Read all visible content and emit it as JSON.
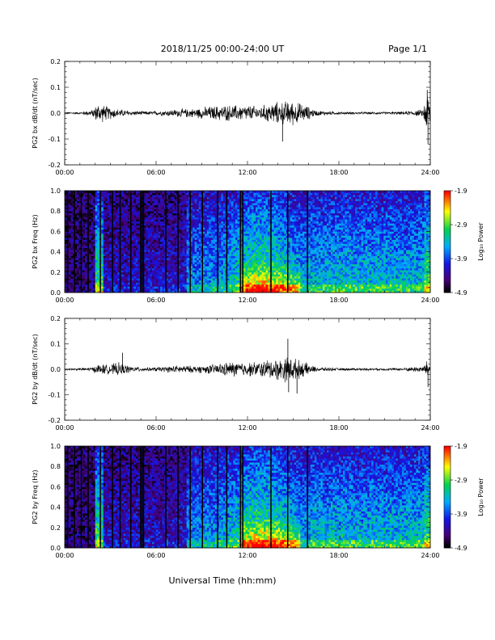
{
  "header": {
    "title": "2018/11/25  00:00-24:00 UT",
    "page": "Page 1/1"
  },
  "footer": {
    "xlabel": "Universal Time (hh:mm)"
  },
  "colors": {
    "trace": "#000000",
    "frame": "#000000",
    "gap_band": "#000000",
    "colorbar": [
      "#000000",
      "#5a0080",
      "#1a1aff",
      "#00c8ff",
      "#00d050",
      "#ffff00",
      "#ff0000"
    ]
  },
  "chart_data": [
    {
      "id": "bx-dbdt",
      "type": "line",
      "ylabel": "PG2 bx dB/dt (nT/sec)",
      "xlim": [
        0,
        24
      ],
      "ylim": [
        -0.2,
        0.2
      ],
      "x_ticks": [
        "00:00",
        "06:00",
        "12:00",
        "18:00",
        "24:00"
      ],
      "y_ticks": [
        "-0.2",
        "-0.1",
        "0.0",
        "0.1",
        "0.2"
      ],
      "y_tick_values": [
        -0.2,
        -0.1,
        0.0,
        0.1,
        0.2
      ],
      "x_tick_values": [
        0,
        6,
        12,
        18,
        24
      ],
      "envelope": {
        "hours": [
          0,
          1,
          1.8,
          2.2,
          2.8,
          3.5,
          4.5,
          5.5,
          6.5,
          7.5,
          8.5,
          9.5,
          10.5,
          11.3,
          12,
          12.8,
          13.5,
          14.2,
          14.7,
          15.2,
          15.8,
          16.5,
          18,
          20,
          22,
          23.5,
          23.8,
          24
        ],
        "amplitude": [
          0.004,
          0.005,
          0.015,
          0.045,
          0.03,
          0.018,
          0.01,
          0.008,
          0.012,
          0.018,
          0.02,
          0.03,
          0.035,
          0.035,
          0.035,
          0.03,
          0.045,
          0.05,
          0.055,
          0.05,
          0.035,
          0.012,
          0.006,
          0.005,
          0.006,
          0.015,
          0.1,
          0.06
        ]
      },
      "spikes": [
        {
          "hour": 14.3,
          "value": -0.11
        },
        {
          "hour": 23.85,
          "value": -0.12
        },
        {
          "hour": 23.8,
          "value": 0.09
        }
      ]
    },
    {
      "id": "bx-freq",
      "type": "heatmap",
      "ylabel": "PG2 bx Freq (Hz)",
      "colorbar_label": "Log₁₀ Power",
      "xlim": [
        0,
        24
      ],
      "ylim": [
        0,
        1.0
      ],
      "x_ticks": [
        "00:00",
        "06:00",
        "12:00",
        "18:00",
        "24:00"
      ],
      "y_ticks": [
        "0.0",
        "0.2",
        "0.4",
        "0.6",
        "0.8",
        "1.0"
      ],
      "y_tick_values": [
        0,
        0.2,
        0.4,
        0.6,
        0.8,
        1.0
      ],
      "x_tick_values": [
        0,
        6,
        12,
        18,
        24
      ],
      "colorbar_ticks": [
        "-1.9",
        "-2.9",
        "-3.9",
        "-4.9"
      ],
      "colorbar_tick_values": [
        -1.9,
        -2.9,
        -3.9,
        -4.9
      ],
      "clim": [
        -4.9,
        -1.9
      ],
      "gaps_hours": [
        0.15,
        0.6,
        1.05,
        1.5,
        2.3,
        3.1,
        3.6,
        4.3,
        4.95,
        5.1,
        6.6,
        7.4,
        8.2,
        9.0,
        10.0,
        10.6,
        11.5,
        11.65,
        13.5,
        14.6,
        15.9
      ],
      "gap_widths_hours": [
        0.08,
        0.08,
        0.08,
        0.08,
        0.08,
        0.08,
        0.08,
        0.08,
        0.12,
        0.12,
        0.08,
        0.08,
        0.08,
        0.08,
        0.08,
        0.08,
        0.08,
        0.08,
        0.08,
        0.08,
        0.08
      ]
    },
    {
      "id": "by-dbdt",
      "type": "line",
      "ylabel": "PG2 by dB/dt (nT/sec)",
      "xlim": [
        0,
        24
      ],
      "ylim": [
        -0.2,
        0.2
      ],
      "x_ticks": [
        "00:00",
        "06:00",
        "12:00",
        "18:00",
        "24:00"
      ],
      "y_ticks": [
        "-0.2",
        "-0.1",
        "0.0",
        "0.1",
        "0.2"
      ],
      "y_tick_values": [
        -0.2,
        -0.1,
        0.0,
        0.1,
        0.2
      ],
      "x_tick_values": [
        0,
        6,
        12,
        18,
        24
      ],
      "envelope": {
        "hours": [
          0,
          1,
          1.8,
          2.3,
          2.8,
          3.5,
          4.5,
          5.5,
          6.5,
          7.5,
          8.5,
          9.5,
          10.5,
          11.3,
          12,
          12.8,
          13.5,
          14.2,
          14.7,
          15.2,
          15.8,
          16.5,
          18,
          20,
          22,
          23.5,
          23.8,
          24
        ],
        "amplitude": [
          0.004,
          0.005,
          0.01,
          0.025,
          0.02,
          0.03,
          0.012,
          0.008,
          0.012,
          0.018,
          0.015,
          0.02,
          0.03,
          0.035,
          0.03,
          0.035,
          0.045,
          0.05,
          0.06,
          0.045,
          0.03,
          0.01,
          0.006,
          0.005,
          0.006,
          0.015,
          0.04,
          0.02
        ]
      },
      "spikes": [
        {
          "hour": 3.8,
          "value": 0.065
        },
        {
          "hour": 14.65,
          "value": 0.12
        },
        {
          "hour": 14.7,
          "value": -0.09
        },
        {
          "hour": 15.25,
          "value": -0.095
        },
        {
          "hour": 23.85,
          "value": -0.07
        }
      ]
    },
    {
      "id": "by-freq",
      "type": "heatmap",
      "ylabel": "PG2 by Freq (Hz)",
      "colorbar_label": "Log₁₀ Power",
      "xlim": [
        0,
        24
      ],
      "ylim": [
        0,
        1.0
      ],
      "x_ticks": [
        "00:00",
        "06:00",
        "12:00",
        "18:00",
        "24:00"
      ],
      "y_ticks": [
        "0.0",
        "0.2",
        "0.4",
        "0.6",
        "0.8",
        "1.0"
      ],
      "y_tick_values": [
        0,
        0.2,
        0.4,
        0.6,
        0.8,
        1.0
      ],
      "x_tick_values": [
        0,
        6,
        12,
        18,
        24
      ],
      "colorbar_ticks": [
        "-1.9",
        "-2.9",
        "-3.9",
        "-4.9"
      ],
      "colorbar_tick_values": [
        -1.9,
        -2.9,
        -3.9,
        -4.9
      ],
      "clim": [
        -4.9,
        -1.9
      ],
      "gaps_hours": [
        0.15,
        0.6,
        1.05,
        1.5,
        2.3,
        3.1,
        3.6,
        4.3,
        4.95,
        5.1,
        6.6,
        7.4,
        8.2,
        9.0,
        10.0,
        10.6,
        11.5,
        11.65,
        13.5,
        14.6,
        15.9
      ],
      "gap_widths_hours": [
        0.08,
        0.08,
        0.08,
        0.08,
        0.08,
        0.08,
        0.08,
        0.08,
        0.12,
        0.12,
        0.08,
        0.08,
        0.08,
        0.08,
        0.08,
        0.08,
        0.08,
        0.08,
        0.08,
        0.08,
        0.08
      ]
    }
  ]
}
